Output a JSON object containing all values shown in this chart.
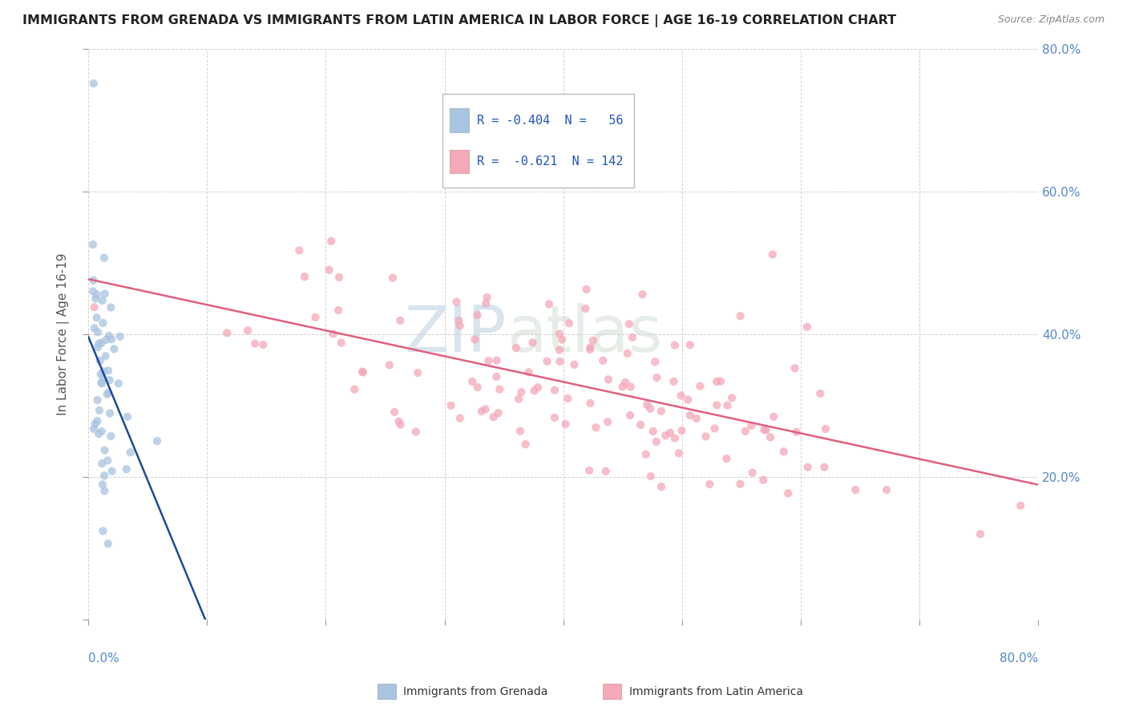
{
  "title": "IMMIGRANTS FROM GRENADA VS IMMIGRANTS FROM LATIN AMERICA IN LABOR FORCE | AGE 16-19 CORRELATION CHART",
  "source": "Source: ZipAtlas.com",
  "ylabel": "In Labor Force | Age 16-19",
  "legend_labels": [
    "Immigrants from Grenada",
    "Immigrants from Latin America"
  ],
  "blue_color": "#a8c4e0",
  "pink_color": "#f4a8b8",
  "blue_line_color": "#1a4a99",
  "pink_line_color": "#e06080",
  "watermark_zip": "ZIP",
  "watermark_atlas": "atlas",
  "xlim": [
    0.0,
    0.8
  ],
  "ylim": [
    0.0,
    0.8
  ],
  "grenada_R": -0.404,
  "grenada_N": 56,
  "latin_R": -0.621,
  "latin_N": 142,
  "grenada_seed": 77,
  "latin_seed": 42
}
